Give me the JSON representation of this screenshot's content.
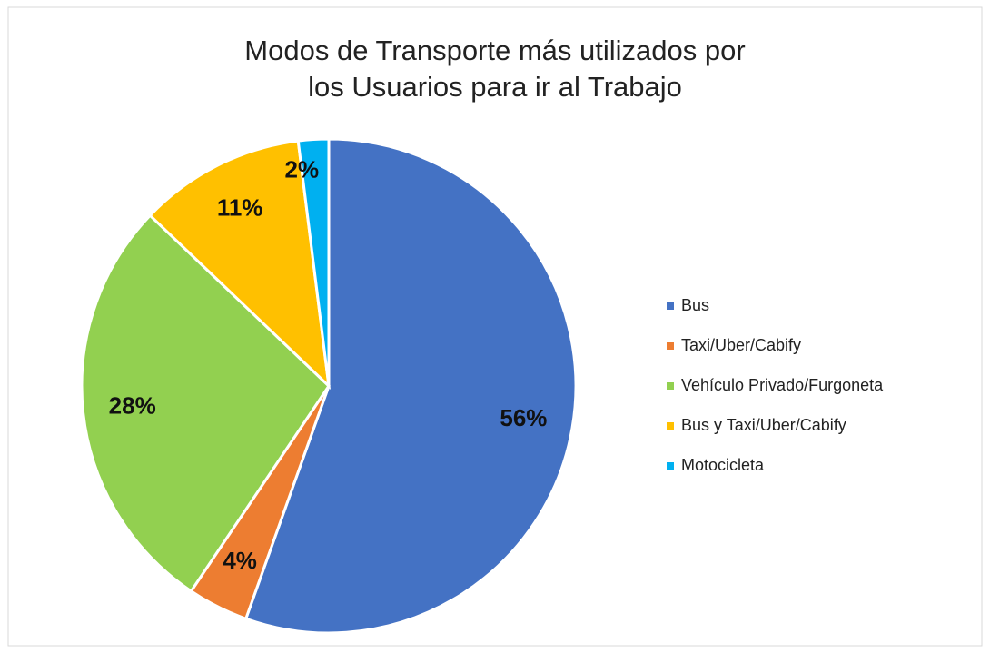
{
  "chart_data": {
    "type": "pie",
    "title": "Modos de Transporte más utilizados por los Usuarios para ir al Trabajo",
    "categories": [
      "Bus",
      "Taxi/Uber/Cabify",
      "Vehículo Privado/Furgoneta",
      "Bus y Taxi/Uber/Cabify",
      "Motocicleta"
    ],
    "values": [
      56,
      4,
      28,
      11,
      2
    ],
    "value_labels": [
      "56%",
      "4%",
      "28%",
      "11%",
      "2%"
    ],
    "colors": [
      "#4472c4",
      "#ed7d31",
      "#92d050",
      "#ffc000",
      "#00b0f0"
    ],
    "legend": "right"
  }
}
